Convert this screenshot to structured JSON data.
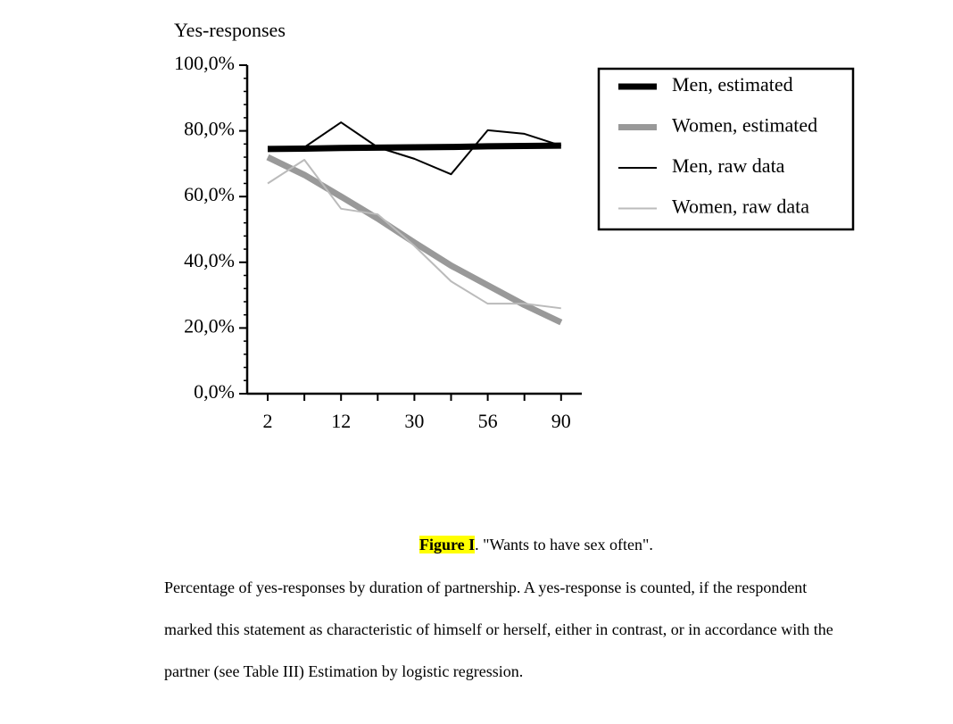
{
  "chart_data": {
    "type": "line",
    "y_label": "Yes-responses",
    "categories": [
      "2",
      null,
      "12",
      null,
      "30",
      null,
      "56",
      null,
      "90"
    ],
    "series": [
      {
        "name": "Men, estimated",
        "color": "#000000",
        "width": 7,
        "values": [
          74.5,
          74.6,
          74.8,
          74.9,
          75.0,
          75.1,
          75.3,
          75.4,
          75.5
        ]
      },
      {
        "name": "Women, estimated",
        "color": "#999999",
        "width": 7,
        "values": [
          72,
          66.6,
          60,
          53.3,
          46,
          39,
          33,
          27,
          21.7
        ]
      },
      {
        "name": "Men, raw data",
        "color": "#000000",
        "width": 2,
        "values": [
          74.5,
          75,
          82.6,
          75,
          71.5,
          66.8,
          80.2,
          79.1,
          75.5
        ]
      },
      {
        "name": "Women, raw data",
        "color": "#bbbbbb",
        "width": 2,
        "values": [
          64,
          71.2,
          56.3,
          54.6,
          45,
          34.2,
          27.4,
          27.4,
          26
        ]
      }
    ],
    "ylim": [
      0,
      100
    ],
    "yticks": [
      {
        "value": 0,
        "label": "0,0%"
      },
      {
        "value": 20,
        "label": "20,0%"
      },
      {
        "value": 40,
        "label": "40,0%"
      },
      {
        "value": 60,
        "label": "60,0%"
      },
      {
        "value": 80,
        "label": "80,0%"
      },
      {
        "value": 100,
        "label": "100,0%"
      }
    ],
    "legend": "right"
  },
  "caption": {
    "figure": "Figure I",
    "title": ". \"Wants to have sex often\".",
    "lines": [
      "Percentage of yes-responses by duration of partnership. A yes-response is counted, if the respondent",
      "marked this statement as characteristic of himself or herself, either in contrast, or in accordance with the",
      "partner (see Table III) Estimation by logistic regression."
    ]
  }
}
